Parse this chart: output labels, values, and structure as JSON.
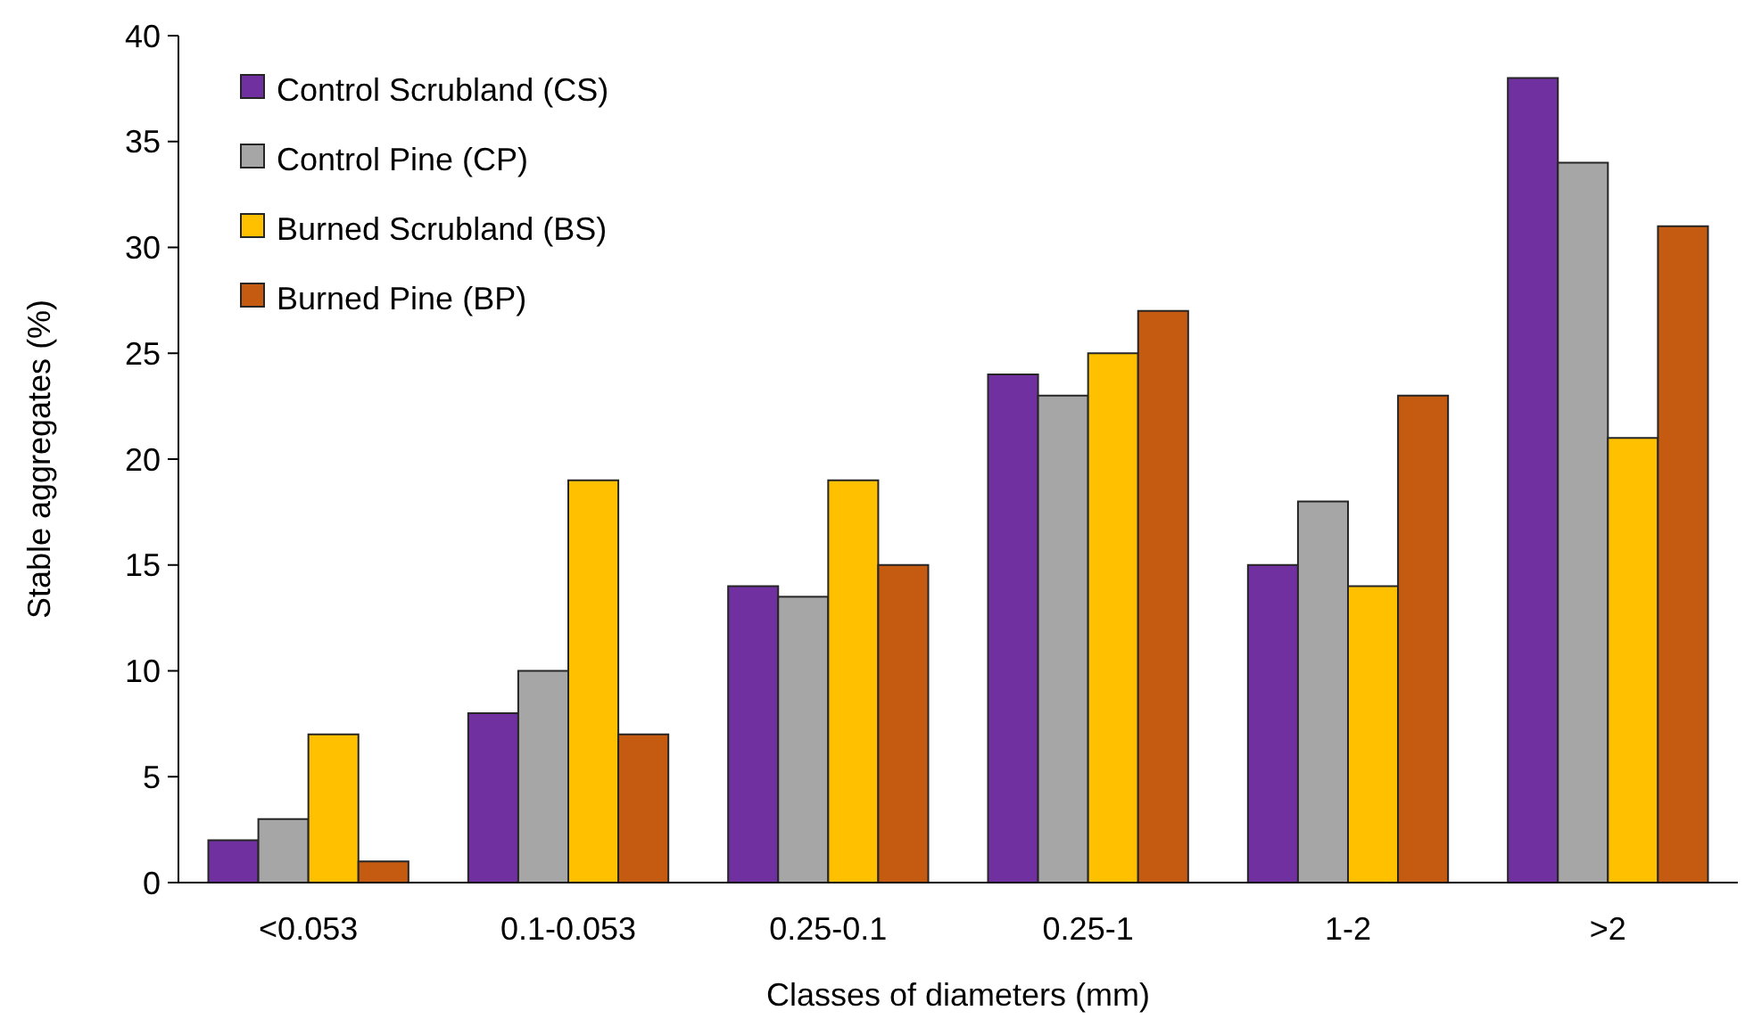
{
  "chart_data": {
    "type": "bar",
    "xlabel": "Classes of diameters (mm)",
    "ylabel": "Stable aggregates (%)",
    "categories": [
      "<0.053",
      "0.1-0.053",
      "0.25-0.1",
      "0.25-1",
      "1-2",
      ">2"
    ],
    "series": [
      {
        "name": "Control Scrubland (CS)",
        "color": "#7030a0",
        "values": [
          2,
          8,
          14,
          24,
          15,
          38
        ]
      },
      {
        "name": "Control Pine (CP)",
        "color": "#a6a6a6",
        "values": [
          3,
          10,
          13.5,
          23,
          18,
          34
        ]
      },
      {
        "name": "Burned Scrubland (BS)",
        "color": "#ffc000",
        "values": [
          7,
          19,
          19,
          25,
          14,
          21
        ]
      },
      {
        "name": "Burned Pine (BP)",
        "color": "#c55a11",
        "values": [
          1,
          7,
          15,
          27,
          23,
          31
        ]
      }
    ],
    "ylim": [
      0,
      40
    ],
    "yticks": [
      0,
      5,
      10,
      15,
      20,
      25,
      30,
      35,
      40
    ],
    "grid": false,
    "legend": "top left"
  }
}
